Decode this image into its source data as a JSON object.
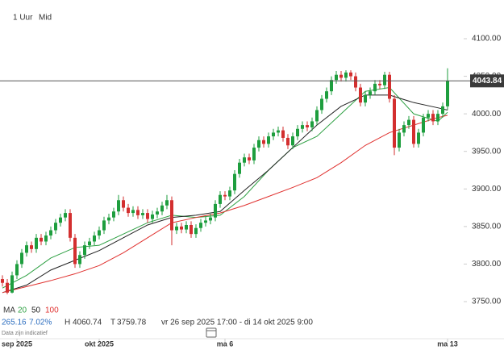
{
  "chart_data": {
    "type": "candlestick",
    "interval": "1 Uur",
    "price_type": "Mid",
    "up_color": "#1e9e3e",
    "down_color": "#d32f2f",
    "open": [
      3780,
      3775,
      3762,
      3785,
      3800,
      3815,
      3825,
      3820,
      3835,
      3830,
      3838,
      3845,
      3855,
      3862,
      3868,
      3835,
      3800,
      3812,
      3825,
      3830,
      3838,
      3845,
      3858,
      3862,
      3870,
      3885,
      3875,
      3868,
      3872,
      3865,
      3868,
      3860,
      3866,
      3870,
      3878,
      3885,
      3845,
      3850,
      3846,
      3852,
      3840,
      3848,
      3855,
      3858,
      3862,
      3880,
      3892,
      3890,
      3898,
      3920,
      3935,
      3942,
      3938,
      3955,
      3965,
      3960,
      3970,
      3975,
      3978,
      3968,
      3958,
      3970,
      3980,
      3985,
      3982,
      3990,
      4005,
      4020,
      4030,
      4045,
      4052,
      4048,
      4055,
      4050,
      4035,
      4015,
      4025,
      4030,
      4040,
      4038,
      4052,
      4020,
      3955,
      3975,
      3985,
      3992,
      3960,
      3975,
      3995,
      4000,
      3990,
      4000,
      4010
    ],
    "high": [
      3785,
      3780,
      3790,
      3805,
      3820,
      3830,
      3830,
      3840,
      3840,
      3843,
      3850,
      3860,
      3867,
      3873,
      3873,
      3840,
      3817,
      3830,
      3835,
      3843,
      3850,
      3863,
      3867,
      3875,
      3892,
      3890,
      3880,
      3877,
      3877,
      3873,
      3873,
      3871,
      3875,
      3883,
      3892,
      3890,
      3855,
      3855,
      3857,
      3857,
      3853,
      3860,
      3863,
      3867,
      3885,
      3897,
      3897,
      3903,
      3925,
      3940,
      3947,
      3947,
      3960,
      3970,
      3970,
      3975,
      3980,
      3983,
      3983,
      3973,
      3975,
      3985,
      3990,
      3990,
      3995,
      4010,
      4025,
      4035,
      4050,
      4057,
      4057,
      4058,
      4058,
      4055,
      4040,
      4030,
      4035,
      4045,
      4045,
      4056,
      4056,
      4025,
      3980,
      3990,
      3997,
      3997,
      3980,
      4000,
      4005,
      4005,
      4005,
      4015,
      4060.74
    ],
    "low": [
      3770,
      3759.78,
      3761,
      3780,
      3795,
      3810,
      3815,
      3815,
      3825,
      3825,
      3833,
      3840,
      3850,
      3857,
      3830,
      3795,
      3795,
      3807,
      3820,
      3825,
      3833,
      3840,
      3853,
      3857,
      3865,
      3870,
      3863,
      3863,
      3860,
      3860,
      3855,
      3855,
      3861,
      3865,
      3873,
      3825,
      3840,
      3841,
      3841,
      3835,
      3835,
      3843,
      3850,
      3853,
      3857,
      3875,
      3885,
      3885,
      3893,
      3915,
      3930,
      3933,
      3933,
      3950,
      3955,
      3955,
      3965,
      3970,
      3963,
      3953,
      3953,
      3965,
      3975,
      3977,
      3977,
      3985,
      4000,
      4015,
      4025,
      4040,
      4043,
      4043,
      4045,
      4030,
      4010,
      4010,
      4020,
      4025,
      4033,
      4033,
      4015,
      3945,
      3950,
      3970,
      3980,
      3955,
      3955,
      3970,
      3990,
      3985,
      3985,
      3995,
      4005
    ],
    "close": [
      3775,
      3762,
      3785,
      3800,
      3815,
      3825,
      3820,
      3835,
      3830,
      3838,
      3845,
      3855,
      3862,
      3868,
      3835,
      3800,
      3812,
      3825,
      3830,
      3838,
      3845,
      3858,
      3862,
      3870,
      3885,
      3875,
      3868,
      3872,
      3865,
      3868,
      3860,
      3866,
      3870,
      3878,
      3885,
      3845,
      3850,
      3846,
      3852,
      3840,
      3848,
      3855,
      3858,
      3862,
      3880,
      3892,
      3890,
      3898,
      3920,
      3935,
      3942,
      3938,
      3955,
      3965,
      3960,
      3970,
      3975,
      3978,
      3968,
      3958,
      3970,
      3980,
      3985,
      3982,
      3990,
      4005,
      4020,
      4030,
      4045,
      4052,
      4048,
      4055,
      4050,
      4035,
      4015,
      4025,
      4030,
      4040,
      4038,
      4052,
      4020,
      3955,
      3975,
      3985,
      3992,
      3960,
      3975,
      3995,
      4000,
      3990,
      4000,
      4010,
      4043.84
    ],
    "ma_label": "MA",
    "series": [
      {
        "name": "20",
        "color": "#2ea043",
        "x": [
          0,
          5,
          10,
          15,
          20,
          25,
          30,
          35,
          40,
          45,
          50,
          55,
          60,
          65,
          70,
          75,
          80,
          85,
          90,
          92
        ],
        "values": [
          3768,
          3785,
          3808,
          3822,
          3825,
          3840,
          3855,
          3865,
          3862,
          3865,
          3890,
          3925,
          3955,
          3970,
          4000,
          4030,
          4035,
          4000,
          3990,
          4002
        ]
      },
      {
        "name": "50",
        "color": "#222222",
        "x": [
          0,
          5,
          10,
          15,
          20,
          25,
          30,
          35,
          40,
          45,
          50,
          55,
          60,
          65,
          70,
          75,
          80,
          85,
          90,
          92
        ],
        "values": [
          3762,
          3772,
          3792,
          3805,
          3818,
          3835,
          3852,
          3862,
          3865,
          3870,
          3898,
          3925,
          3955,
          3985,
          4010,
          4025,
          4025,
          4015,
          4008,
          4005
        ]
      },
      {
        "name": "100",
        "color": "#e0312f",
        "x": [
          0,
          5,
          10,
          15,
          20,
          25,
          30,
          35,
          40,
          45,
          50,
          55,
          60,
          65,
          70,
          75,
          80,
          85,
          90,
          92
        ],
        "values": [
          3762,
          3770,
          3778,
          3787,
          3798,
          3815,
          3835,
          3855,
          3862,
          3868,
          3878,
          3890,
          3902,
          3915,
          3935,
          3958,
          3975,
          3985,
          3995,
          3998
        ]
      }
    ],
    "last_price": 4043.84,
    "ylim": [
      3725,
      4125
    ],
    "yticks": [
      {
        "value": 3750,
        "label": "3750.00"
      },
      {
        "value": 3800,
        "label": "3800.00"
      },
      {
        "value": 3850,
        "label": "3850.00"
      },
      {
        "value": 3900,
        "label": "3900.00"
      },
      {
        "value": 3950,
        "label": "3950.00"
      },
      {
        "value": 4000,
        "label": "4000.00"
      },
      {
        "value": 4050,
        "label": "4050.00"
      },
      {
        "value": 4100,
        "label": "4100.00"
      }
    ],
    "xticks": [
      {
        "value": 3,
        "label": "sep 2025"
      },
      {
        "value": 20,
        "label": "okt 2025"
      },
      {
        "value": 46,
        "label": "ma 6"
      },
      {
        "value": 92,
        "label": "ma 13"
      }
    ],
    "stats": {
      "change": 265.16,
      "change_pct": {
        "value": 7.02,
        "label": "7.02%"
      },
      "high_label": "H",
      "high": 4060.74,
      "low_label": "T",
      "low": 3759.78,
      "range": "vr 26 sep 2025 17:00 - di 14 okt 2025 9:00"
    },
    "note": "Data zijn indicatief"
  }
}
